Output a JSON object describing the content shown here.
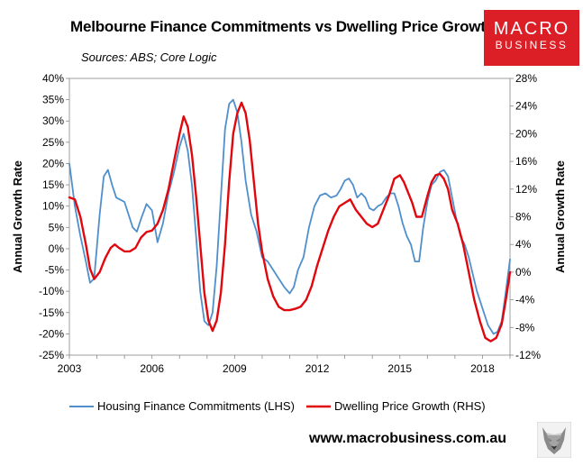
{
  "chart_data": {
    "type": "line",
    "title": "Melbourne Finance Commitments vs Dwelling Price Growth",
    "subtitle": "Sources: ABS; Core Logic",
    "ylabel": "Annual Growth Rate",
    "y2label": "Annual Growth Rate",
    "ylim": [
      -25,
      40
    ],
    "y2lim": [
      -12,
      28
    ],
    "xlim": [
      2003,
      2019
    ],
    "x_ticks": [
      2003,
      2006,
      2009,
      2012,
      2015,
      2018
    ],
    "y_ticks": [
      40,
      35,
      30,
      25,
      20,
      15,
      10,
      5,
      0,
      -5,
      -10,
      -15,
      -20,
      -25
    ],
    "y2_ticks": [
      28,
      24,
      20,
      16,
      12,
      8,
      4,
      0,
      -4,
      -8,
      -12
    ],
    "grid": false,
    "legend_position": "bottom",
    "series": [
      {
        "name": "Housing Finance Commitments (LHS)",
        "axis": "left",
        "color": "#4f8fcc",
        "x": [
          2003.0,
          2003.2,
          2003.4,
          2003.6,
          2003.75,
          2003.9,
          2004.1,
          2004.25,
          2004.4,
          2004.55,
          2004.7,
          2004.85,
          2005.0,
          2005.15,
          2005.3,
          2005.45,
          2005.6,
          2005.8,
          2006.0,
          2006.2,
          2006.4,
          2006.6,
          2006.8,
          2007.0,
          2007.15,
          2007.3,
          2007.45,
          2007.6,
          2007.75,
          2007.9,
          2008.05,
          2008.2,
          2008.35,
          2008.5,
          2008.65,
          2008.8,
          2008.95,
          2009.1,
          2009.25,
          2009.4,
          2009.6,
          2009.8,
          2010.0,
          2010.2,
          2010.4,
          2010.6,
          2010.8,
          2011.0,
          2011.15,
          2011.3,
          2011.5,
          2011.7,
          2011.9,
          2012.1,
          2012.3,
          2012.5,
          2012.7,
          2012.85,
          2013.0,
          2013.15,
          2013.3,
          2013.45,
          2013.6,
          2013.75,
          2013.9,
          2014.05,
          2014.2,
          2014.35,
          2014.5,
          2014.65,
          2014.8,
          2014.95,
          2015.1,
          2015.25,
          2015.4,
          2015.55,
          2015.7,
          2015.85,
          2016.0,
          2016.15,
          2016.3,
          2016.45,
          2016.6,
          2016.75,
          2016.9,
          2017.05,
          2017.2,
          2017.35,
          2017.5,
          2017.65,
          2017.8,
          2018.0,
          2018.2,
          2018.4,
          2018.55,
          2018.7,
          2018.85,
          2019.0
        ],
        "values": [
          20,
          10,
          3,
          -3,
          -8,
          -7,
          8,
          17,
          18.5,
          15,
          12,
          11.5,
          11,
          8,
          5,
          4,
          7,
          10.5,
          9,
          1.5,
          6,
          13,
          18,
          24,
          27,
          23,
          15,
          3,
          -10,
          -17,
          -18,
          -15,
          -4,
          12,
          28,
          34,
          35,
          32,
          25,
          16,
          8,
          4,
          -2,
          -3,
          -5,
          -7,
          -9,
          -10.5,
          -9,
          -5,
          -2,
          5,
          10,
          12.5,
          13,
          12,
          12.5,
          14,
          16,
          16.5,
          15,
          12,
          13,
          12,
          9.5,
          9,
          10,
          10.5,
          12,
          13,
          13,
          10,
          6,
          3,
          1,
          -3,
          -3,
          5,
          11,
          15,
          16,
          18,
          18.5,
          17,
          12,
          7,
          3,
          1,
          -2,
          -6,
          -10,
          -14,
          -18,
          -20,
          -19.5,
          -17,
          -10,
          -2.5
        ]
      },
      {
        "name": "Dwelling Price Growth (RHS)",
        "axis": "right",
        "color": "#e0080e",
        "x": [
          2003.0,
          2003.2,
          2003.4,
          2003.6,
          2003.75,
          2003.9,
          2004.1,
          2004.3,
          2004.5,
          2004.65,
          2004.8,
          2005.0,
          2005.2,
          2005.4,
          2005.6,
          2005.8,
          2006.0,
          2006.2,
          2006.4,
          2006.6,
          2006.8,
          2007.0,
          2007.15,
          2007.3,
          2007.45,
          2007.6,
          2007.75,
          2007.9,
          2008.05,
          2008.2,
          2008.35,
          2008.5,
          2008.65,
          2008.8,
          2008.95,
          2009.1,
          2009.25,
          2009.4,
          2009.55,
          2009.7,
          2009.85,
          2010.0,
          2010.2,
          2010.4,
          2010.6,
          2010.8,
          2011.0,
          2011.2,
          2011.4,
          2011.6,
          2011.8,
          2012.0,
          2012.2,
          2012.4,
          2012.6,
          2012.8,
          2013.0,
          2013.2,
          2013.4,
          2013.6,
          2013.8,
          2014.0,
          2014.2,
          2014.4,
          2014.6,
          2014.8,
          2015.0,
          2015.15,
          2015.3,
          2015.45,
          2015.6,
          2015.8,
          2016.0,
          2016.15,
          2016.3,
          2016.45,
          2016.6,
          2016.75,
          2016.9,
          2017.1,
          2017.3,
          2017.5,
          2017.7,
          2017.9,
          2018.1,
          2018.3,
          2018.5,
          2018.7,
          2018.85,
          2019.0
        ],
        "values": [
          10.8,
          10.5,
          8,
          4,
          0.5,
          -1,
          0,
          2,
          3.5,
          4,
          3.5,
          3,
          3,
          3.5,
          5,
          5.8,
          6,
          7,
          9,
          12,
          16,
          20,
          22.5,
          21,
          17,
          11,
          4,
          -3,
          -7,
          -8.5,
          -7,
          -3,
          4,
          13,
          20,
          23,
          24.5,
          23,
          19,
          13,
          7,
          3,
          -1,
          -3.5,
          -5,
          -5.5,
          -5.5,
          -5.3,
          -5,
          -4,
          -2,
          1,
          3.5,
          6,
          8,
          9.5,
          10,
          10.5,
          9,
          8,
          7,
          6.5,
          7,
          9,
          11,
          13.5,
          14,
          13,
          11.5,
          10,
          8,
          8,
          11,
          13,
          14,
          14.2,
          13.5,
          12,
          9,
          7,
          4,
          0,
          -4,
          -7,
          -9.5,
          -10,
          -9.5,
          -7.5,
          -4,
          0
        ]
      }
    ]
  },
  "branding": {
    "logo_line1": "MACRO",
    "logo_line2": "BUSINESS",
    "website": "www.macrobusiness.com.au",
    "logo_color": "#dc1e26",
    "wolf_icon": "wolf-icon"
  }
}
